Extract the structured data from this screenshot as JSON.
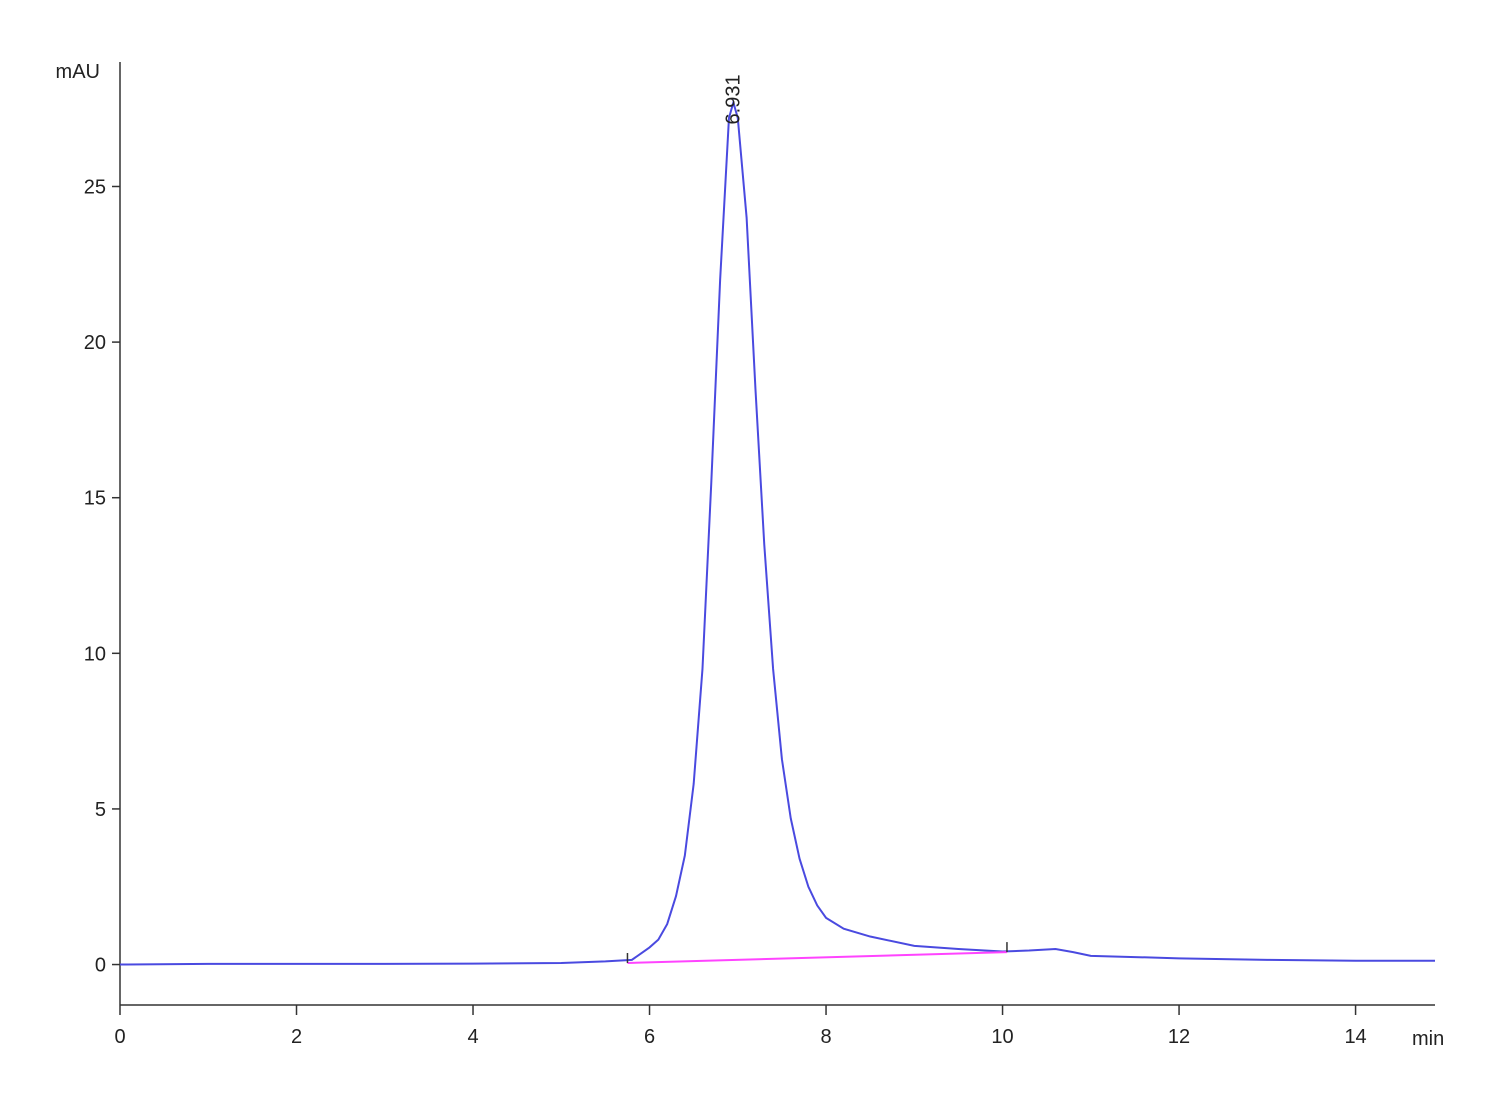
{
  "chart_data": {
    "type": "line",
    "y_label": "mAU",
    "x_label": "min",
    "x": [
      0,
      1,
      2,
      3,
      4,
      5,
      5.5,
      5.8,
      5.9,
      6.0,
      6.1,
      6.2,
      6.3,
      6.4,
      6.5,
      6.6,
      6.7,
      6.8,
      6.9,
      6.95,
      7.0,
      7.1,
      7.2,
      7.3,
      7.4,
      7.5,
      7.6,
      7.7,
      7.8,
      7.9,
      8.0,
      8.2,
      8.5,
      9.0,
      9.5,
      10.0,
      10.3,
      10.6,
      10.8,
      11.0,
      12.0,
      13.0,
      14.0,
      14.9
    ],
    "series": [
      {
        "color": "#4a4ae0",
        "values": [
          0,
          0.02,
          0.02,
          0.02,
          0.03,
          0.05,
          0.1,
          0.15,
          0.35,
          0.55,
          0.8,
          1.3,
          2.2,
          3.5,
          5.8,
          9.5,
          15.5,
          22,
          27.2,
          27.7,
          27.2,
          24,
          18.5,
          13.5,
          9.5,
          6.6,
          4.7,
          3.4,
          2.5,
          1.9,
          1.5,
          1.15,
          0.9,
          0.6,
          0.5,
          0.42,
          0.45,
          0.5,
          0.4,
          0.28,
          0.2,
          0.15,
          0.12,
          0.12
        ]
      }
    ],
    "baseline": {
      "color": "#ff44ff",
      "x": [
        5.75,
        10.05
      ],
      "values": [
        0.05,
        0.4
      ]
    },
    "annotation": {
      "text": "6.931",
      "x": 6.931
    },
    "xlim": [
      0,
      14.9
    ],
    "ylim": [
      -1.3,
      29
    ],
    "xticks": [
      0,
      2,
      4,
      6,
      8,
      10,
      12,
      14
    ],
    "yticks": [
      0,
      5,
      10,
      15,
      20,
      25
    ]
  }
}
